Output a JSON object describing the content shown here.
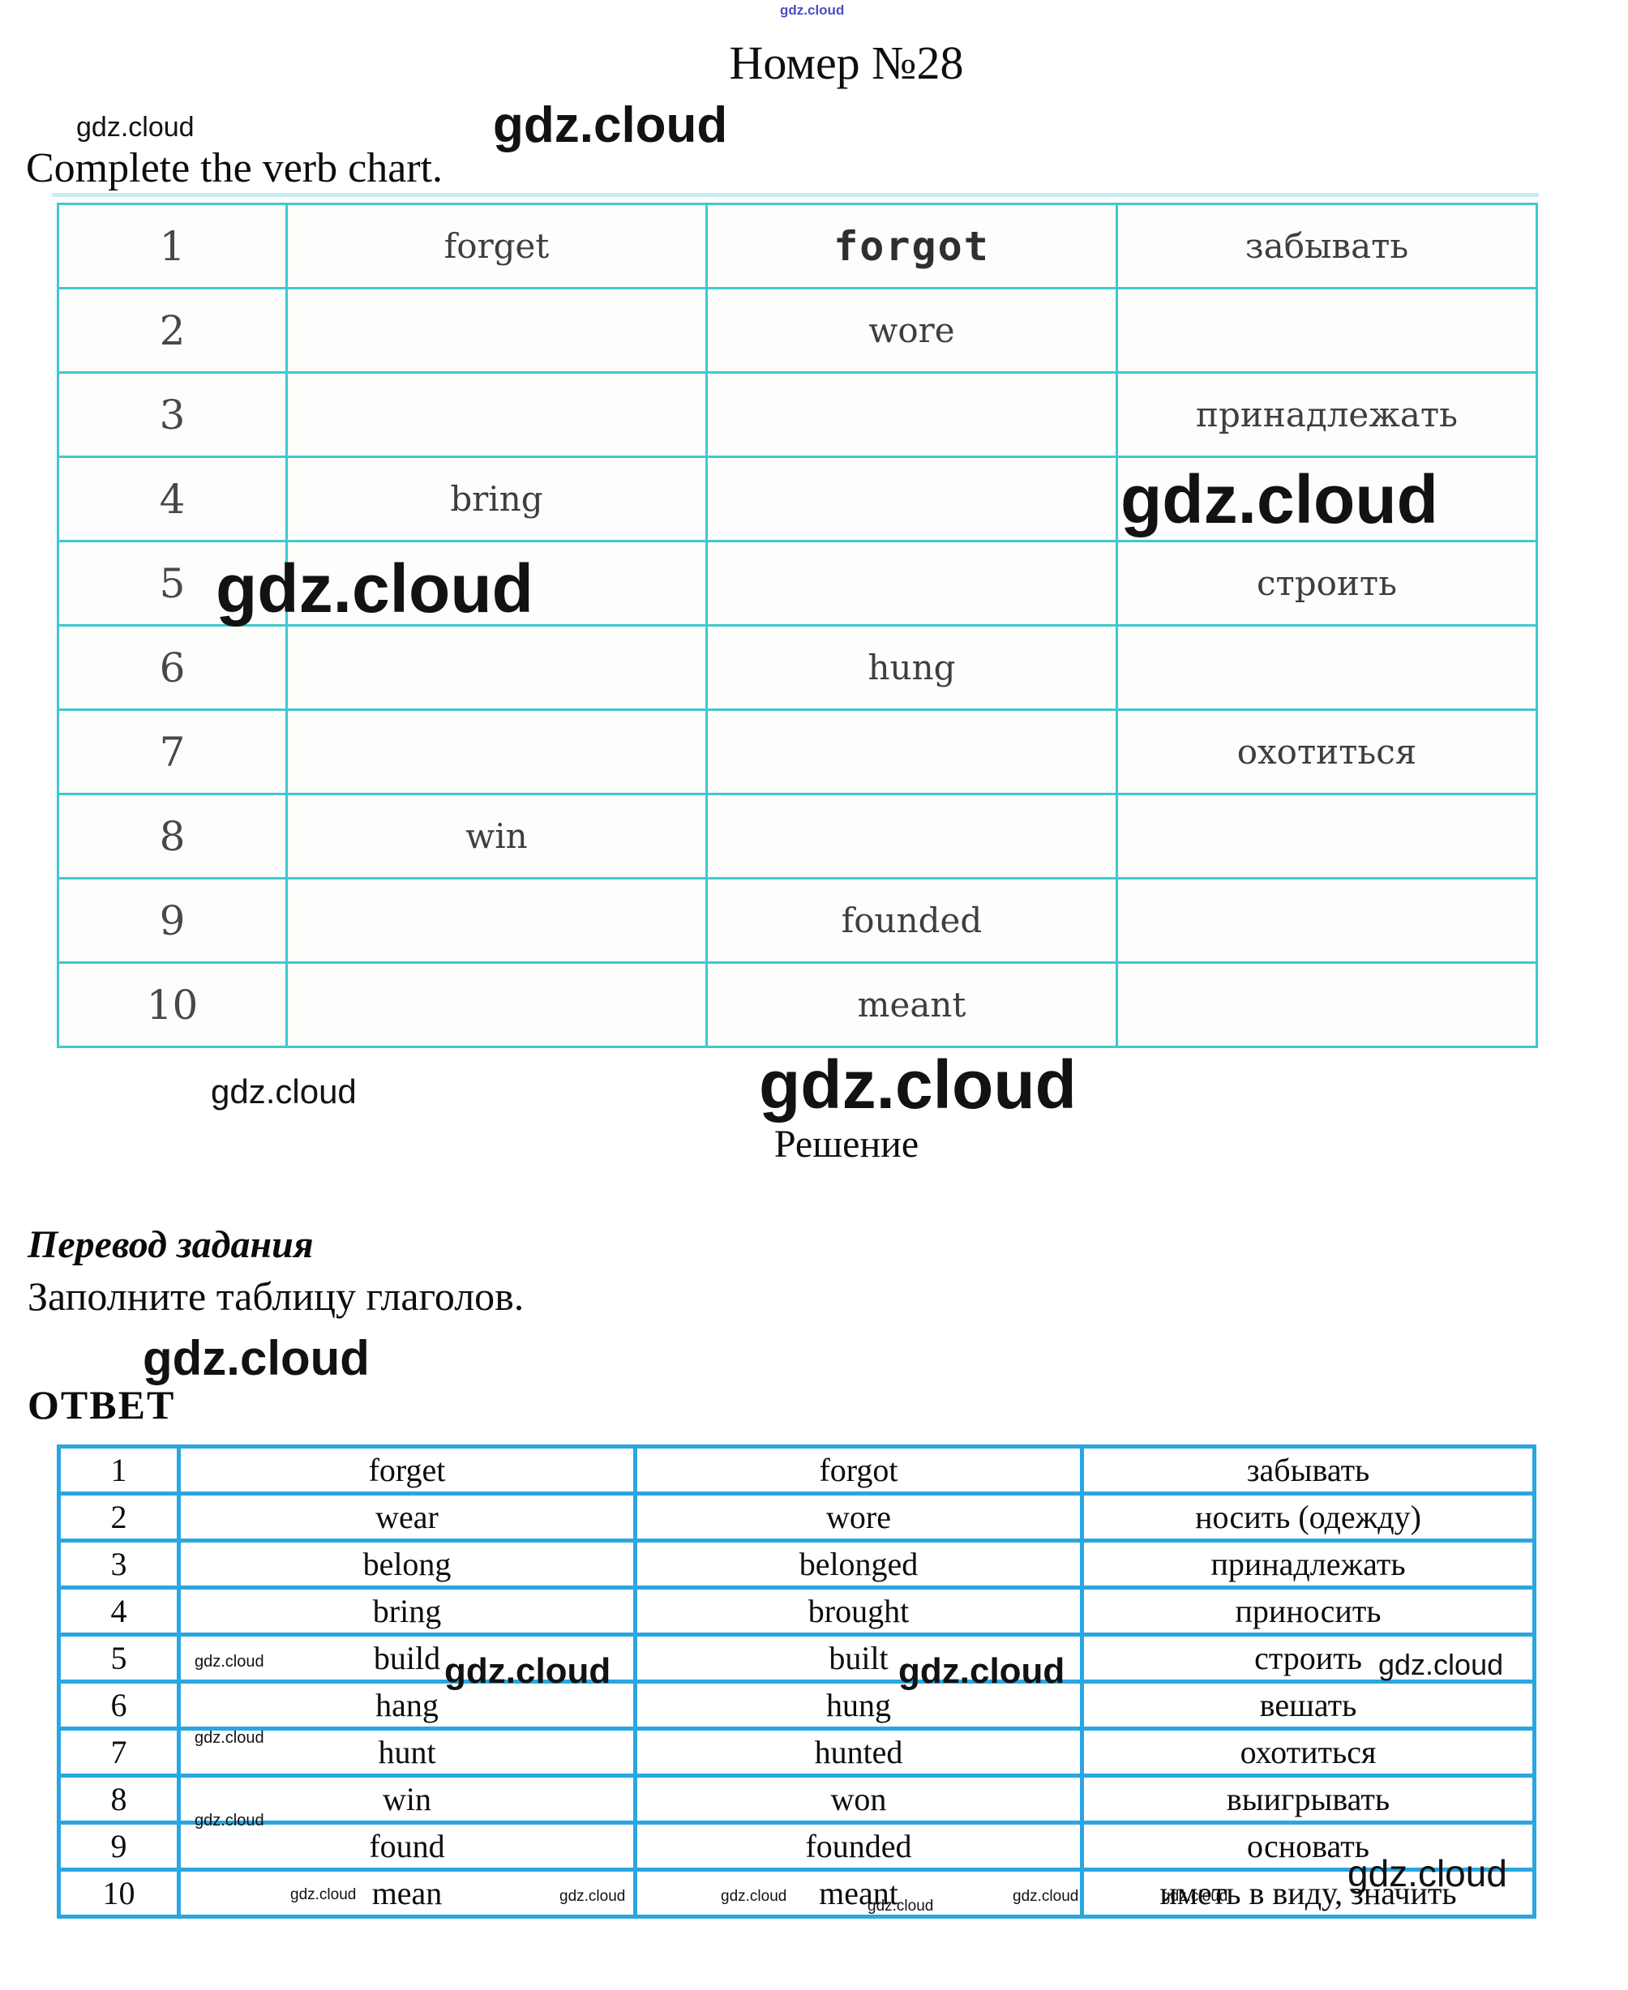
{
  "watermark": {
    "text": "gdz.cloud",
    "blue_color": "#2e2eb8",
    "black_color": "#121212"
  },
  "header": {
    "title": "Номер №28",
    "instruction": "Complete the verb chart."
  },
  "solution": {
    "label": "Решение"
  },
  "translation": {
    "heading": "Перевод задания",
    "text": "Заполните таблицу глаголов."
  },
  "answer": {
    "heading": "ОТВЕТ"
  },
  "exercise_table": {
    "border_color": "#40c8cf",
    "rows": [
      {
        "num": "1",
        "infinitive": "forget",
        "past": "forgot",
        "translation": "забывать"
      },
      {
        "num": "2",
        "infinitive": "",
        "past": "wore",
        "translation": ""
      },
      {
        "num": "3",
        "infinitive": "",
        "past": "",
        "translation": "принадлежать"
      },
      {
        "num": "4",
        "infinitive": "bring",
        "past": "",
        "translation": ""
      },
      {
        "num": "5",
        "infinitive": "",
        "past": "",
        "translation": "строить"
      },
      {
        "num": "6",
        "infinitive": "",
        "past": "hung",
        "translation": ""
      },
      {
        "num": "7",
        "infinitive": "",
        "past": "",
        "translation": "охотиться"
      },
      {
        "num": "8",
        "infinitive": "win",
        "past": "",
        "translation": ""
      },
      {
        "num": "9",
        "infinitive": "",
        "past": "founded",
        "translation": ""
      },
      {
        "num": "10",
        "infinitive": "",
        "past": "meant",
        "translation": ""
      }
    ]
  },
  "answer_table": {
    "border_color": "#2aa6e0",
    "rows": [
      {
        "num": "1",
        "infinitive": "forget",
        "past": "forgot",
        "translation": "забывать"
      },
      {
        "num": "2",
        "infinitive": "wear",
        "past": "wore",
        "translation": "носить (одежду)"
      },
      {
        "num": "3",
        "infinitive": "belong",
        "past": "belonged",
        "translation": "принадлежать"
      },
      {
        "num": "4",
        "infinitive": "bring",
        "past": "brought",
        "translation": "приносить"
      },
      {
        "num": "5",
        "infinitive": "build",
        "past": "built",
        "translation": "строить"
      },
      {
        "num": "6",
        "infinitive": "hang",
        "past": "hung",
        "translation": "вешать"
      },
      {
        "num": "7",
        "infinitive": "hunt",
        "past": "hunted",
        "translation": "охотиться"
      },
      {
        "num": "8",
        "infinitive": "win",
        "past": "won",
        "translation": "выигрывать"
      },
      {
        "num": "9",
        "infinitive": "found",
        "past": "founded",
        "translation": "основать"
      },
      {
        "num": "10",
        "infinitive": "mean",
        "past": "meant",
        "translation": "иметь в виду, значить"
      }
    ]
  }
}
